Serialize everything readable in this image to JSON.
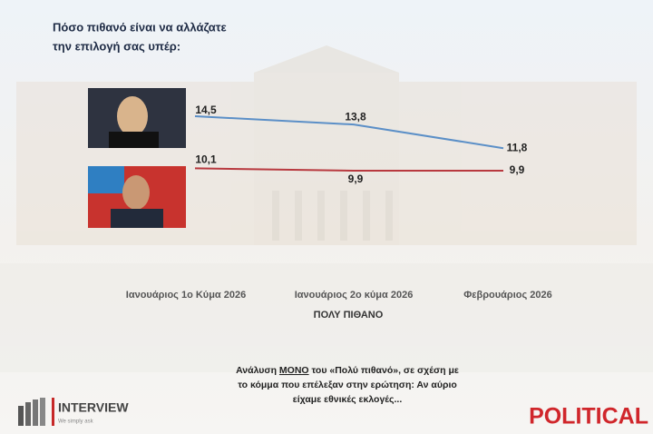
{
  "chart_data": {
    "type": "line",
    "title_lines": [
      "Πόσο πιθανό είναι να αλλάζατε",
      "την επιλογή σας υπέρ:"
    ],
    "categories": [
      "Ιανουάριος 1ο Κύμα 2026",
      "Ιανουάριος 2ο κύμα 2026",
      "Φεβρουάριος 2026"
    ],
    "x_label": "ΠΟΛΥ ΠΙΘΑΝΟ",
    "series": [
      {
        "color": "#5b8fc7",
        "values": [
          14.5,
          13.8,
          11.8
        ],
        "value_labels": [
          "14,5",
          "13,8",
          "11,8"
        ]
      },
      {
        "color": "#b8393f",
        "values": [
          10.1,
          9.9,
          9.9
        ],
        "value_labels": [
          "10,1",
          "9,9",
          "9,9"
        ]
      }
    ],
    "note": {
      "line1_start": "Ανάλυση",
      "line1_emphasis": "ΜΟΝΟ",
      "line1_end": "του «Πολύ πιθανό», σε σχέση με",
      "line2": "το κόμμα που επέλεξαν στην ερώτηση: Αν αύριο",
      "line3": "είχαμε εθνικές εκλογές..."
    }
  },
  "logos": {
    "interview": "INTERVIEW",
    "interview_tagline": "We simply ask",
    "political": "POLITICAL"
  }
}
